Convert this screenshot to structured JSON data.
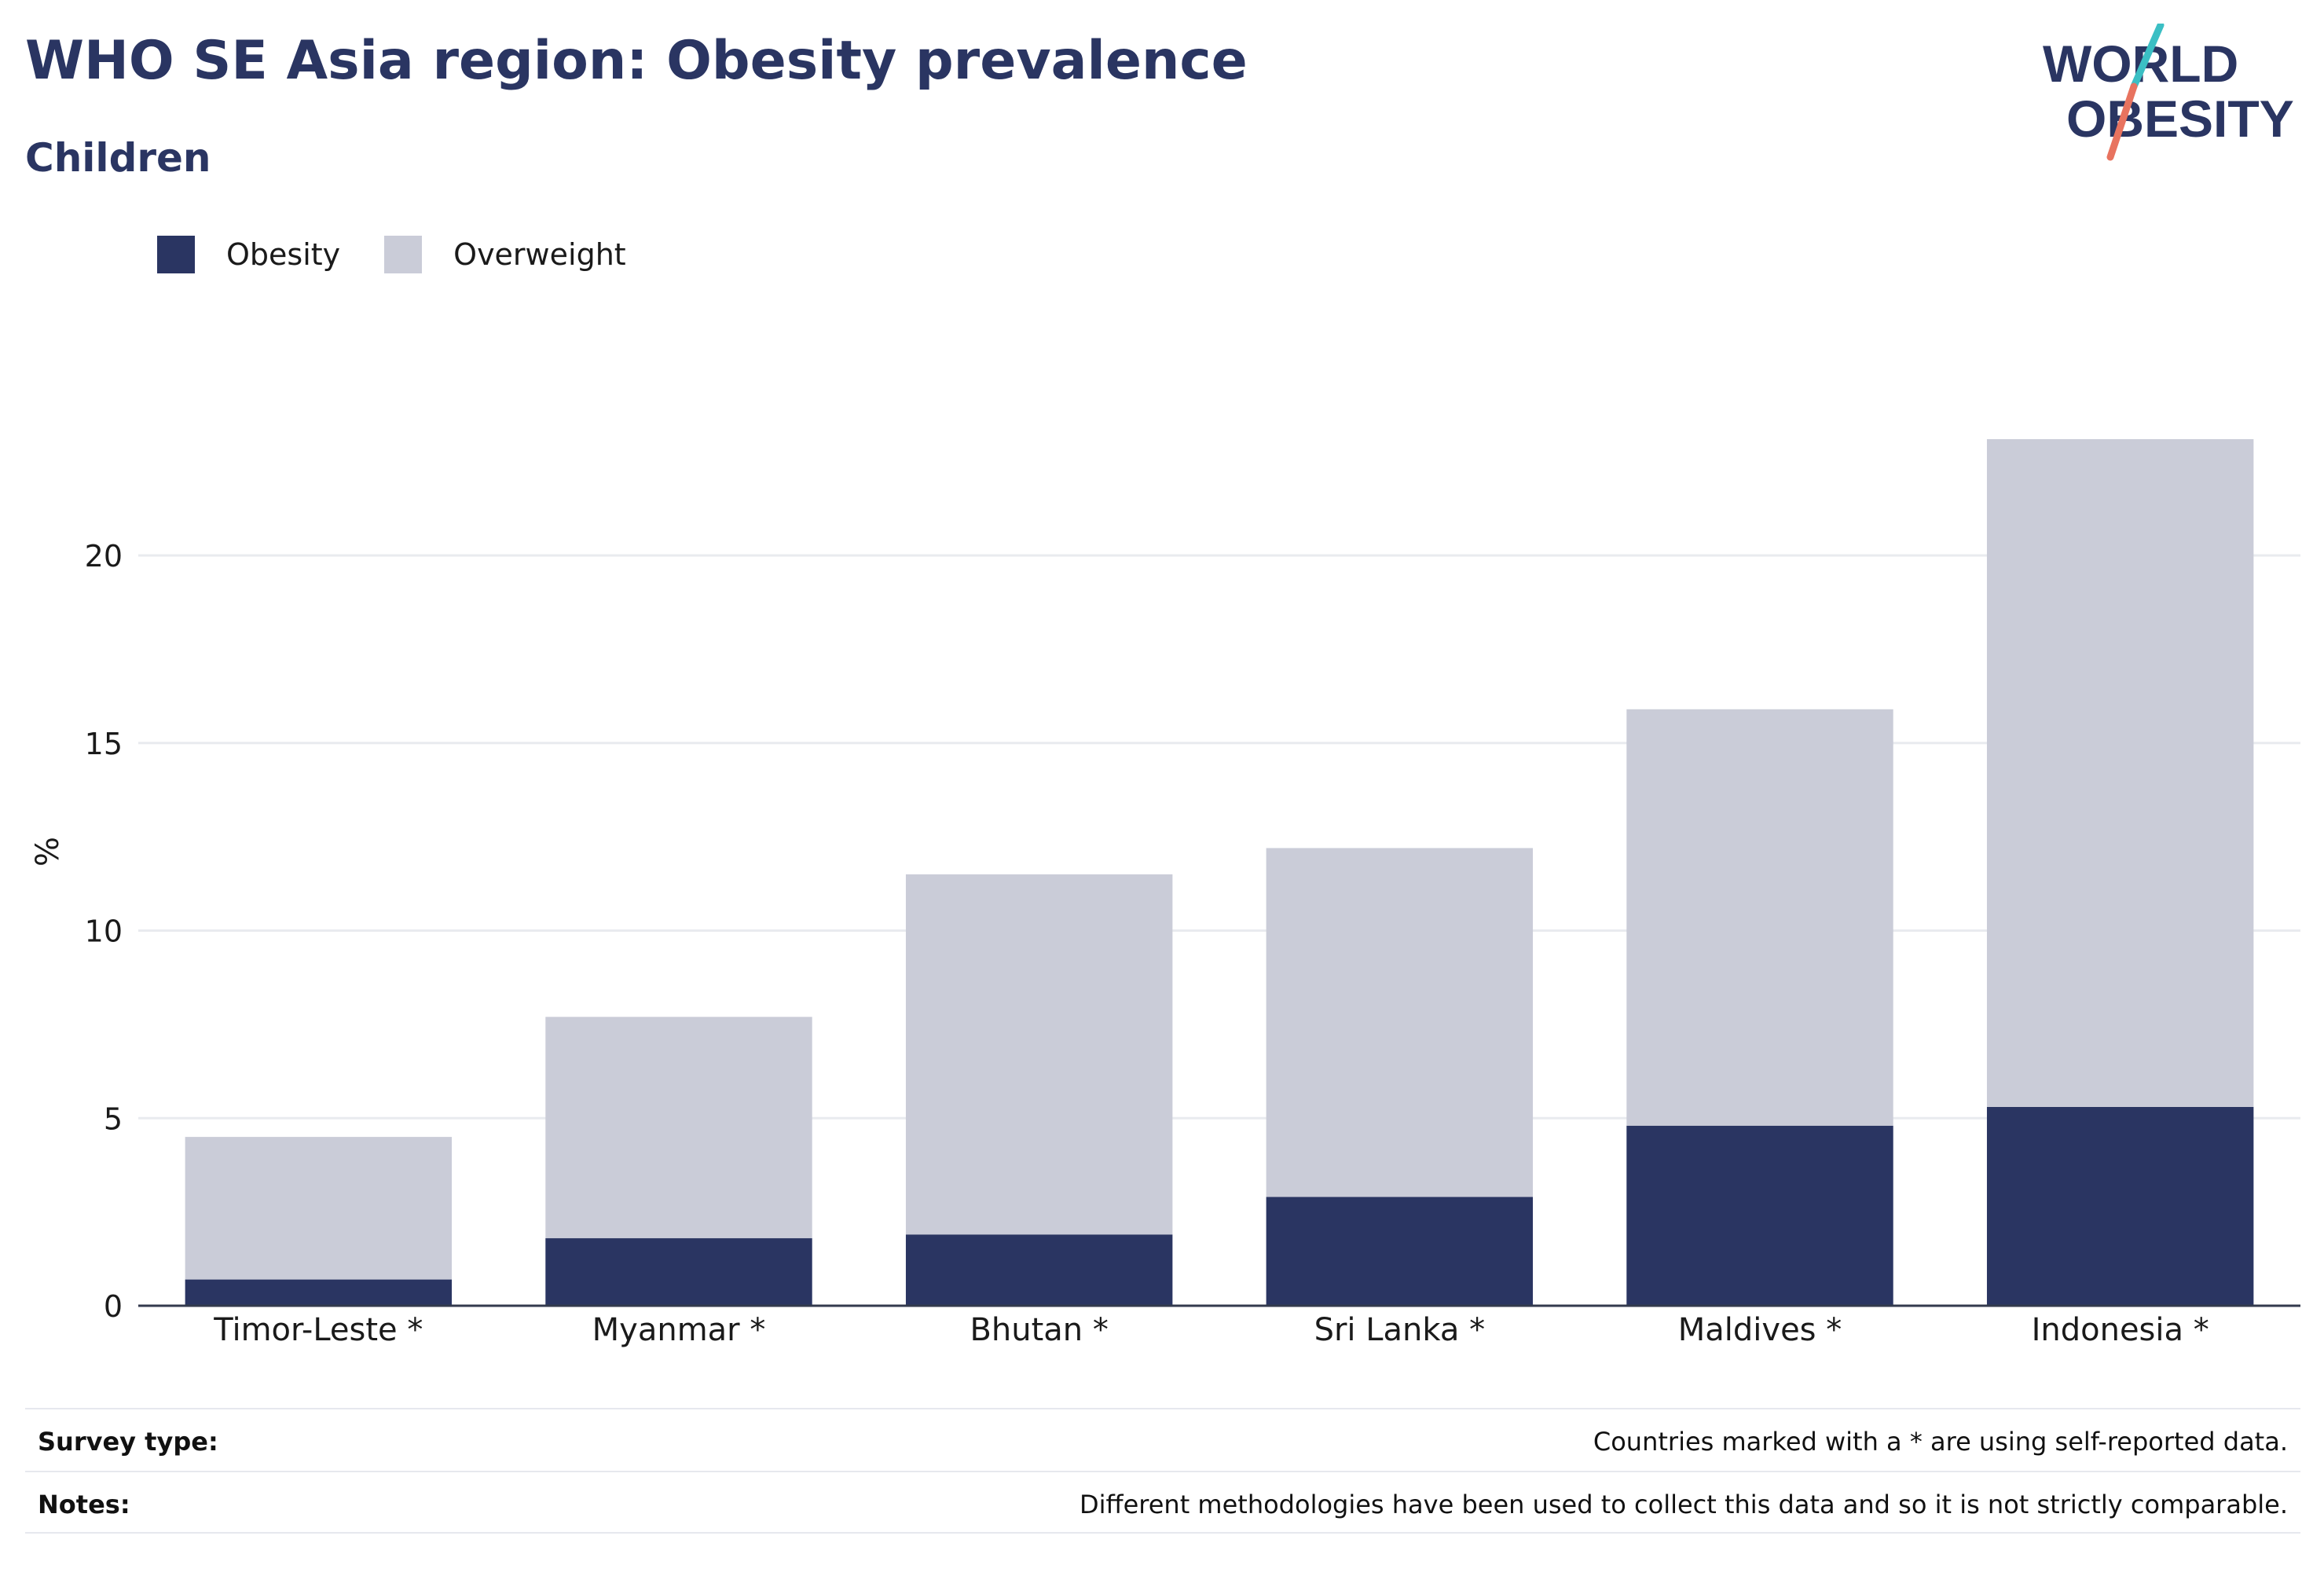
{
  "header": {
    "title": "WHO SE Asia region: Obesity prevalence",
    "subtitle": "Children"
  },
  "logo": {
    "line1": "WORLD",
    "line2": "OBESITY",
    "slash_colors": [
      "#3bbfc4",
      "#e8735f"
    ],
    "text_color": "#2a3562"
  },
  "chart_data": {
    "type": "bar",
    "stacked": true,
    "categories": [
      "Timor-Leste *",
      "Myanmar *",
      "Bhutan *",
      "Sri Lanka *",
      "Maldives *",
      "Indonesia *"
    ],
    "series": [
      {
        "name": "Obesity",
        "color": "#2a3562",
        "values": [
          0.7,
          1.8,
          1.9,
          2.9,
          4.8,
          5.3
        ]
      },
      {
        "name": "Overweight",
        "color": "#caccd8",
        "values": [
          3.8,
          5.9,
          9.6,
          9.3,
          11.1,
          17.8
        ]
      }
    ],
    "totals": [
      4.5,
      7.7,
      11.5,
      12.2,
      15.9,
      23.1
    ],
    "ylabel": "%",
    "xlabel": "",
    "ylim": [
      0,
      24
    ],
    "yticks": [
      0,
      5,
      10,
      15,
      20
    ],
    "grid": true,
    "legend_position": "top-left"
  },
  "footer": {
    "survey_label": "Survey type:",
    "survey_value": "Countries marked with a * are using self-reported data.",
    "notes_label": "Notes:",
    "notes_value": "Different methodologies have been used to collect this data and so it is not strictly comparable."
  }
}
